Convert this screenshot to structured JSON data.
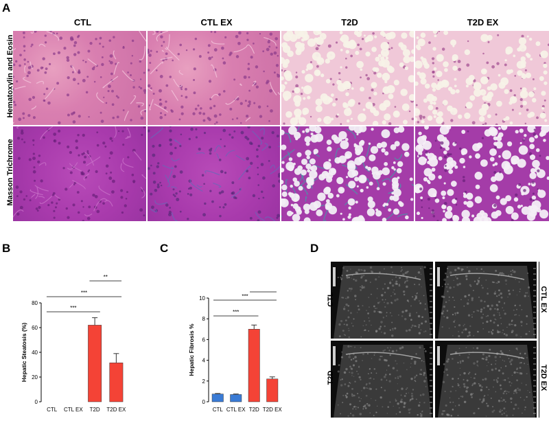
{
  "panel_a": {
    "letter": "A",
    "columns": [
      "CTL",
      "CTL EX",
      "T2D",
      "T2D EX"
    ],
    "rows": [
      "Hematoxylin and Eosin",
      "Masson Trichrome"
    ]
  },
  "panel_b_letter": "B",
  "panel_c_letter": "C",
  "panel_d": {
    "letter": "D",
    "labels": {
      "top_left": "CTL",
      "top_right": "CTL EX",
      "bottom_left": "T2D",
      "bottom_right": "T2D EX"
    }
  },
  "colors": {
    "red_bar": "#f44336",
    "blue_bar": "#3a7bd5",
    "he_pink": "#d97fb0",
    "mt_purple": "#a83aac"
  },
  "chart_data": [
    {
      "type": "bar",
      "title": "",
      "ylabel": "Hepatic Steatosis (%)",
      "xlabel": "",
      "categories": [
        "CTL",
        "CTL EX",
        "T2D",
        "T2D EX"
      ],
      "values": [
        0,
        0,
        62,
        31.5
      ],
      "errors": [
        0,
        0,
        6,
        7.5
      ],
      "ylim": [
        0,
        80
      ],
      "yticks": [
        "0",
        "20",
        "40",
        "60",
        "80"
      ],
      "significance": [
        {
          "from": "CTL",
          "to": "T2D",
          "label": "***"
        },
        {
          "from": "CTL",
          "to": "T2D EX",
          "label": "***"
        },
        {
          "from": "T2D",
          "to": "T2D EX",
          "label": "**"
        }
      ]
    },
    {
      "type": "bar",
      "title": "",
      "ylabel": "Hepatic Fibrosis %",
      "xlabel": "",
      "categories": [
        "CTL",
        "CTL EX",
        "T2D",
        "T2D EX"
      ],
      "values": [
        0.75,
        0.7,
        7.0,
        2.2
      ],
      "errors": [
        0.05,
        0.05,
        0.4,
        0.2
      ],
      "ylim": [
        0,
        10
      ],
      "yticks": [
        "0",
        "2",
        "4",
        "6",
        "8",
        "10"
      ],
      "significance": [
        {
          "from": "CTL",
          "to": "T2D",
          "label": "***"
        },
        {
          "from": "CTL",
          "to": "T2D EX",
          "label": "***"
        },
        {
          "from": "T2D",
          "to": "T2D EX",
          "label": "***"
        }
      ]
    }
  ]
}
